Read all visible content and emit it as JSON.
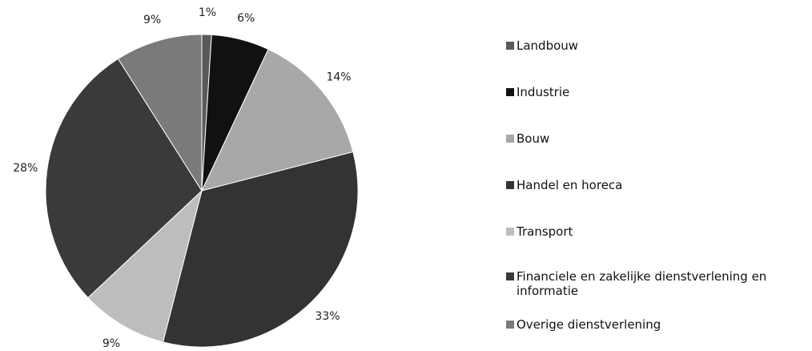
{
  "chart_data": {
    "type": "pie",
    "categories": [
      "Landbouw",
      "Industrie",
      "Bouw",
      "Handel en horeca",
      "Transport",
      "Financiele en zakelijke dienstverlening en informatie",
      "Overige dienstverlening"
    ],
    "values": [
      1,
      6,
      14,
      33,
      9,
      28,
      9
    ],
    "value_labels": [
      "1%",
      "6%",
      "14%",
      "33%",
      "9%",
      "28%",
      "9%"
    ],
    "colors": [
      "#5a5a5a",
      "#111111",
      "#a8a8a8",
      "#333333",
      "#bdbdbd",
      "#3a3a3a",
      "#7a7a7a"
    ],
    "legend": "right"
  }
}
